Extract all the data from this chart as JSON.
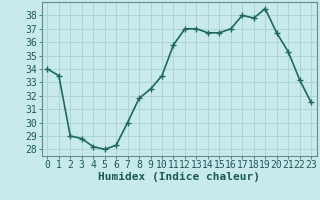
{
  "xlabel": "Humidex (Indice chaleur)",
  "x": [
    0,
    1,
    2,
    3,
    4,
    5,
    6,
    7,
    8,
    9,
    10,
    11,
    12,
    13,
    14,
    15,
    16,
    17,
    18,
    19,
    20,
    21,
    22,
    23
  ],
  "y": [
    34.0,
    33.5,
    29.0,
    28.8,
    28.2,
    28.0,
    28.3,
    30.0,
    31.8,
    32.5,
    33.5,
    35.8,
    37.0,
    37.0,
    36.7,
    36.7,
    37.0,
    38.0,
    37.8,
    38.5,
    36.7,
    35.3,
    33.2,
    31.5
  ],
  "ylim_min": 27.5,
  "ylim_max": 39.0,
  "yticks": [
    28,
    29,
    30,
    31,
    32,
    33,
    34,
    35,
    36,
    37,
    38
  ],
  "xticks": [
    0,
    1,
    2,
    3,
    4,
    5,
    6,
    7,
    8,
    9,
    10,
    11,
    12,
    13,
    14,
    15,
    16,
    17,
    18,
    19,
    20,
    21,
    22,
    23
  ],
  "line_color": "#1a6b5a",
  "marker": "+",
  "bg_color": "#c8eaea",
  "grid_color": "#aed4d4",
  "spine_color": "#5a9090",
  "tick_label_color": "#1a5a5a",
  "xlabel_color": "#1a5a5a",
  "xlabel_fontsize": 8,
  "tick_fontsize": 7,
  "line_width": 1.2,
  "marker_size": 4,
  "marker_ew": 1.0
}
